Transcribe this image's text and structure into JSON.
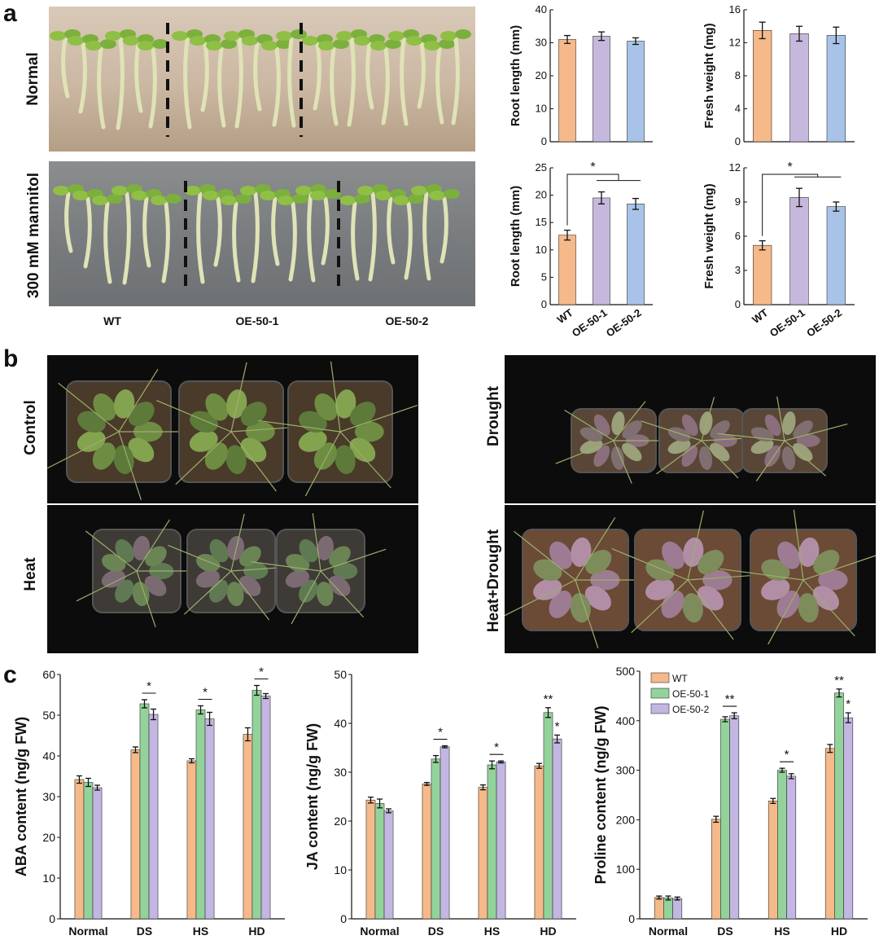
{
  "panel_letters": {
    "a": "a",
    "b": "b",
    "c": "c"
  },
  "panel_a": {
    "row_labels": [
      "Normal",
      "300 mM mannitol"
    ],
    "genotype_labels": [
      "WT",
      "OE-50-1",
      "OE-50-2"
    ]
  },
  "panel_b": {
    "labels": [
      "Control",
      "Heat",
      "Drought",
      "Heat+Drought"
    ]
  },
  "colors": {
    "wt": "#f5b98a",
    "oe1_a": "#c6b8dd",
    "oe2_a": "#a9c3e8",
    "oe1_c": "#93d39b",
    "oe2_c": "#c3b6e2",
    "edge": "#222222"
  },
  "chart_data": [
    {
      "type": "bar",
      "id": "a_root_normal",
      "categories": [
        "WT",
        "OE-50-1",
        "OE-50-2"
      ],
      "values": [
        31,
        32,
        30.5
      ],
      "errors": [
        1.2,
        1.3,
        1.0
      ],
      "ylabel": "Root length (mm)",
      "ylim": [
        0,
        40
      ],
      "yticks": [
        0,
        10,
        20,
        30,
        40
      ],
      "show_xticks": false,
      "significance": []
    },
    {
      "type": "bar",
      "id": "a_fw_normal",
      "categories": [
        "WT",
        "OE-50-1",
        "OE-50-2"
      ],
      "values": [
        13.5,
        13.1,
        12.9
      ],
      "errors": [
        1.0,
        0.9,
        1.0
      ],
      "ylabel": "Fresh weight (mg)",
      "ylim": [
        0,
        16
      ],
      "yticks": [
        0,
        4,
        8,
        12,
        16
      ],
      "show_xticks": false,
      "significance": []
    },
    {
      "type": "bar",
      "id": "a_root_mannitol",
      "categories": [
        "WT",
        "OE-50-1",
        "OE-50-2"
      ],
      "values": [
        12.7,
        19.5,
        18.4
      ],
      "errors": [
        0.9,
        1.1,
        1.0
      ],
      "ylabel": "Root length (mm)",
      "ylim": [
        0,
        25
      ],
      "yticks": [
        0,
        5,
        10,
        15,
        20,
        25
      ],
      "show_xticks": true,
      "significance": [
        "*"
      ]
    },
    {
      "type": "bar",
      "id": "a_fw_mannitol",
      "categories": [
        "WT",
        "OE-50-1",
        "OE-50-2"
      ],
      "values": [
        5.2,
        9.4,
        8.6
      ],
      "errors": [
        0.4,
        0.8,
        0.4
      ],
      "ylabel": "Fresh weight (mg)",
      "ylim": [
        0,
        12
      ],
      "yticks": [
        0,
        3,
        6,
        9,
        12
      ],
      "show_xticks": true,
      "significance": [
        "*"
      ]
    },
    {
      "type": "bar",
      "id": "c_aba",
      "categories": [
        "Normal",
        "DS",
        "HS",
        "HD"
      ],
      "series": [
        {
          "name": "WT",
          "values": [
            34.2,
            41.5,
            38.8,
            45.3
          ],
          "errors": [
            0.9,
            0.7,
            0.5,
            1.6
          ]
        },
        {
          "name": "OE-50-1",
          "values": [
            33.5,
            52.8,
            51.3,
            56.1
          ],
          "errors": [
            1.0,
            1.0,
            1.0,
            1.2
          ]
        },
        {
          "name": "OE-50-2",
          "values": [
            32.2,
            50.2,
            49.1,
            54.7
          ],
          "errors": [
            0.6,
            1.3,
            1.6,
            0.6
          ]
        }
      ],
      "ylabel": "ABA content (ng/g FW)",
      "ylim": [
        0,
        60
      ],
      "yticks": [
        0,
        10,
        20,
        30,
        40,
        50,
        60
      ],
      "significance": [
        "",
        "*",
        "*",
        "*"
      ]
    },
    {
      "type": "bar",
      "id": "c_ja",
      "categories": [
        "Normal",
        "DS",
        "HS",
        "HD"
      ],
      "series": [
        {
          "name": "WT",
          "values": [
            24.3,
            27.6,
            26.9,
            31.3
          ],
          "errors": [
            0.6,
            0.3,
            0.5,
            0.5
          ]
        },
        {
          "name": "OE-50-1",
          "values": [
            23.6,
            32.7,
            31.5,
            42.2
          ],
          "errors": [
            0.9,
            0.7,
            0.8,
            1.0
          ]
        },
        {
          "name": "OE-50-2",
          "values": [
            22.1,
            35.2,
            32.1,
            36.8
          ],
          "errors": [
            0.4,
            0.2,
            0.2,
            0.8
          ]
        }
      ],
      "ylabel": "JA content (ng/g FW)",
      "ylim": [
        0,
        50
      ],
      "yticks": [
        0,
        10,
        20,
        30,
        40,
        50
      ],
      "significance": [
        "",
        "*",
        "*",
        "**|*"
      ]
    },
    {
      "type": "bar",
      "id": "c_proline",
      "categories": [
        "Normal",
        "DS",
        "HS",
        "HD"
      ],
      "series": [
        {
          "name": "WT",
          "values": [
            43,
            201,
            238,
            344
          ],
          "errors": [
            3,
            6,
            5,
            8
          ]
        },
        {
          "name": "OE-50-1",
          "values": [
            42,
            403,
            300,
            456
          ],
          "errors": [
            4,
            5,
            4,
            8
          ]
        },
        {
          "name": "OE-50-2",
          "values": [
            41,
            410,
            288,
            406
          ],
          "errors": [
            3,
            6,
            5,
            10
          ]
        }
      ],
      "ylabel": "Proline content (ng/g FW)",
      "ylim": [
        0,
        500
      ],
      "yticks": [
        0,
        100,
        200,
        300,
        400,
        500
      ],
      "legend": [
        "WT",
        "OE-50-1",
        "OE-50-2"
      ],
      "legend_position": "top-left",
      "significance": [
        "",
        "**",
        "*",
        "**|*"
      ]
    }
  ]
}
